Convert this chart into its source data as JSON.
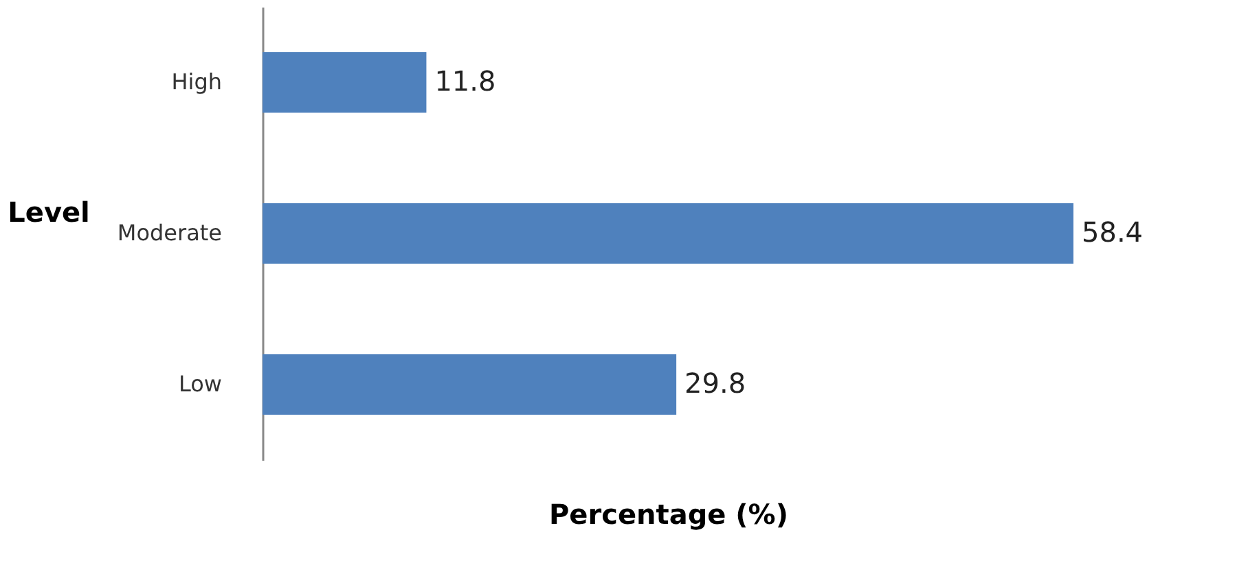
{
  "chart_data": {
    "type": "bar",
    "orientation": "horizontal",
    "categories": [
      "High",
      "Moderate",
      "Low"
    ],
    "values": [
      11.8,
      58.4,
      29.8
    ],
    "color": "#4f81bd",
    "data_labels": true,
    "xlabel": "Percentage (%)",
    "ylabel": "Level",
    "tick_labels": "y",
    "grid": false
  }
}
